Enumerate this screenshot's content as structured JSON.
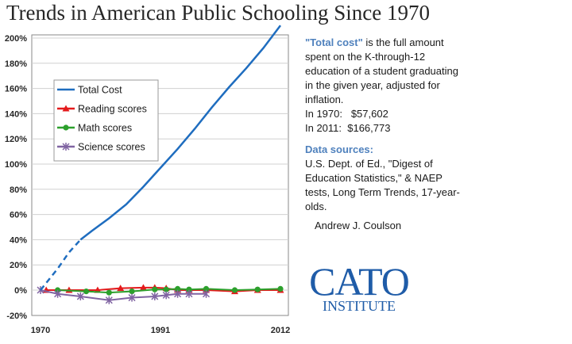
{
  "title": "Trends in American Public Schooling Since 1970",
  "chart_data": {
    "type": "line",
    "x_ticks": [
      "1970",
      "1991",
      "2012"
    ],
    "x_range": [
      1970,
      2012
    ],
    "ylim": [
      -20,
      200
    ],
    "y_ticks": [
      "200%",
      "180%",
      "160%",
      "140%",
      "120%",
      "100%",
      "80%",
      "60%",
      "40%",
      "20%",
      "0%",
      "-20%"
    ],
    "y_tick_values": [
      200,
      180,
      160,
      140,
      120,
      100,
      80,
      60,
      40,
      20,
      0,
      -20
    ],
    "grid": true,
    "legend_position": "top-left",
    "series": [
      {
        "name": "Total Cost",
        "color": "#1f6dbf",
        "marker": "none",
        "dashed_until": 1977,
        "x": [
          1970,
          1973,
          1975,
          1977,
          1979,
          1982,
          1985,
          1988,
          1991,
          1994,
          1997,
          2000,
          2003,
          2006,
          2009,
          2012
        ],
        "y": [
          0,
          17,
          30,
          40,
          47,
          57,
          68,
          82,
          97,
          112,
          128,
          145,
          161,
          176,
          192,
          210
        ]
      },
      {
        "name": "Reading scores",
        "color": "#e41a1c",
        "marker": "triangle",
        "x": [
          1971,
          1975,
          1980,
          1984,
          1988,
          1990,
          1992,
          1994,
          1996,
          1999,
          2004,
          2008,
          2012
        ],
        "y": [
          0,
          0,
          0,
          1.5,
          2,
          2,
          1.5,
          0,
          0,
          0,
          -1,
          0,
          0
        ]
      },
      {
        "name": "Math scores",
        "color": "#2ca02c",
        "marker": "circle",
        "x": [
          1973,
          1978,
          1982,
          1986,
          1990,
          1992,
          1994,
          1996,
          1999,
          2004,
          2008,
          2012
        ],
        "y": [
          0,
          -1,
          -2,
          -1,
          0.5,
          0.5,
          1,
          0.5,
          1,
          0,
          0.5,
          1
        ]
      },
      {
        "name": "Science scores",
        "color": "#8064a2",
        "marker": "asterisk",
        "x": [
          1970,
          1973,
          1977,
          1982,
          1986,
          1990,
          1992,
          1994,
          1996,
          1999
        ],
        "y": [
          0,
          -3,
          -5,
          -8,
          -6,
          -5,
          -4,
          -3,
          -3,
          -3
        ]
      }
    ]
  },
  "sidebar": {
    "p1_hl": "\"Total cost\"",
    "p1_rest": " is the full amount spent on the K-through-12 education of a student graduating in the given year, adjusted for inflation.",
    "cost_1970": "In 1970:   $57,602",
    "cost_2011": "In 2011:  $166,773",
    "sources_heading": "Data sources:",
    "sources_text": "U.S. Dept. of Ed., \"Digest of Education Statistics,\"  & NAEP tests, Long Term Trends, 17-year-olds.",
    "author": "Andrew J. Coulson"
  },
  "logo": {
    "main": "CATO",
    "sub": "INSTITUTE"
  }
}
